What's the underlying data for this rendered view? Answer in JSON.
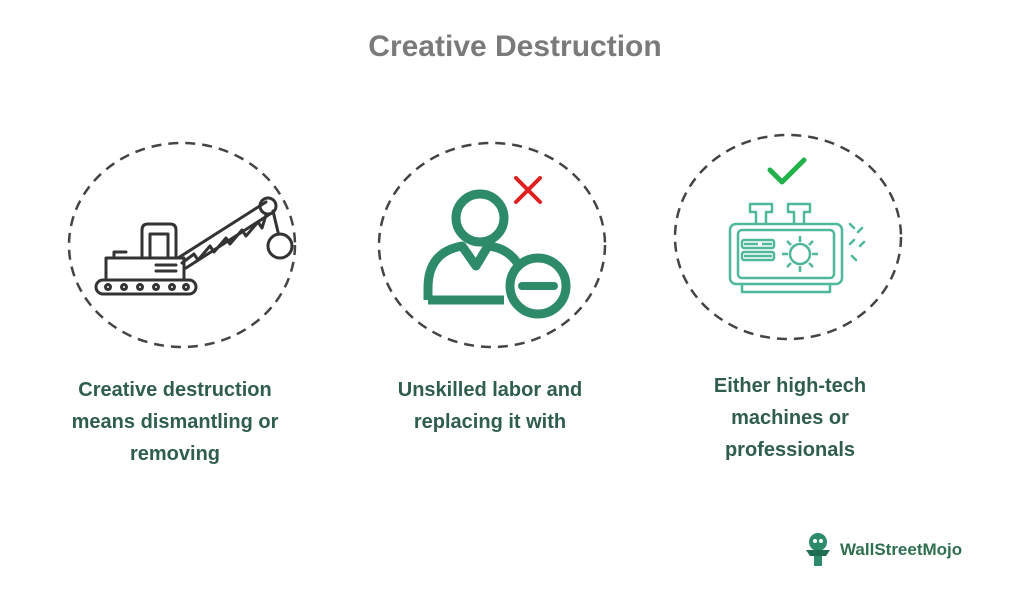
{
  "header": {
    "title": "Creative Destruction"
  },
  "items": [
    {
      "caption_line1": "Creative destruction",
      "caption_line2": "means dismantling or",
      "caption_line3": "removing",
      "icon": "crane-demolition-icon"
    },
    {
      "caption_line1": "Unskilled labor and",
      "caption_line2": "replacing it with",
      "icon": "remove-person-icon"
    },
    {
      "caption_line1": "Either high-tech",
      "caption_line2": "machines or",
      "caption_line3": "professionals",
      "icon": "machine-check-icon"
    }
  ],
  "brand": {
    "name": "WallStreetMojo"
  },
  "colors": {
    "green": "#2e8b6a",
    "red": "#e02020",
    "check": "#22b04a",
    "dark": "#333333"
  }
}
